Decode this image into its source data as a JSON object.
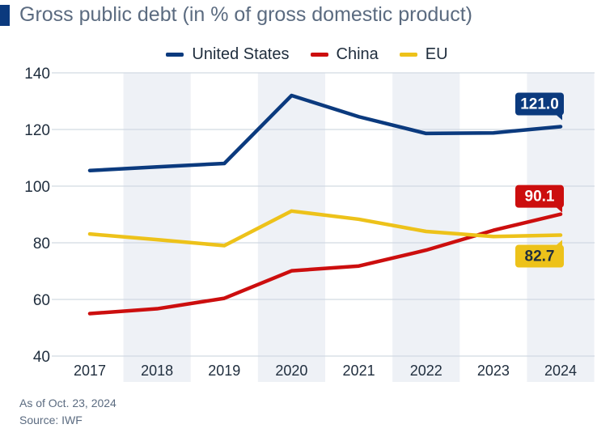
{
  "title": "Gross public debt (in % of gross domestic product)",
  "footer": {
    "note": "As of Oct. 23, 2024",
    "source": "Source: IWF"
  },
  "colors": {
    "title_bar": "#0b3a7e",
    "band": "#eef1f6",
    "grid": "#d2d9e2",
    "axis_text": "#1f2d3d"
  },
  "chart_data": {
    "type": "line",
    "title": "Gross public debt (in % of gross domestic product)",
    "xlabel": "",
    "ylabel": "",
    "x": [
      "2017",
      "2018",
      "2019",
      "2020",
      "2021",
      "2022",
      "2023",
      "2024"
    ],
    "ylim": [
      40,
      140
    ],
    "yticks": [
      40,
      60,
      80,
      100,
      120,
      140
    ],
    "grid": true,
    "legend": "top-center",
    "series": [
      {
        "name": "United States",
        "color": "#0b3a7e",
        "values": [
          105.5,
          106.8,
          108.0,
          132.0,
          124.5,
          118.6,
          118.8,
          121.0
        ],
        "end_label": "121.0"
      },
      {
        "name": "China",
        "color": "#cc0e0e",
        "values": [
          55.0,
          56.7,
          60.4,
          70.1,
          71.8,
          77.4,
          84.4,
          90.1
        ],
        "end_label": "90.1"
      },
      {
        "name": "EU",
        "color": "#edc21a",
        "values": [
          83.1,
          81.1,
          79.0,
          91.2,
          88.3,
          84.0,
          82.2,
          82.7
        ],
        "end_label": "82.7"
      }
    ]
  }
}
